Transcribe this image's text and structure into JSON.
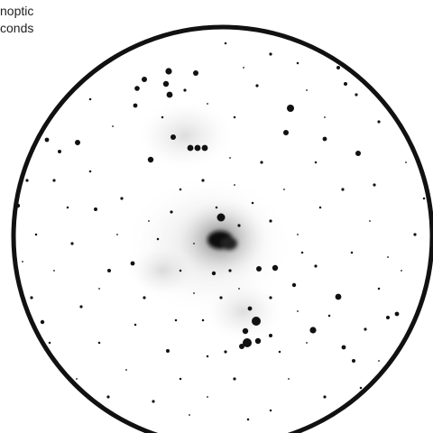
{
  "caption": {
    "line1": "noptic",
    "line2": "conds"
  },
  "view": {
    "field_color": "#ffffff",
    "ring_color": "#111111",
    "star_color": "#111111",
    "nebula_color": "#9a9a9a"
  }
}
